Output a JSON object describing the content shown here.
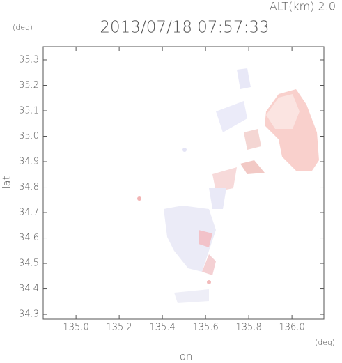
{
  "chart_data": {
    "type": "map",
    "title": "2013/07/18 07:57:33",
    "altitude_label": "ALT(km)  2.0",
    "y_unit": "(deg)",
    "x_unit": "(deg)",
    "xlabel": "lon",
    "ylabel": "lat",
    "xlim": [
      134.848,
      136.148
    ],
    "ylim": [
      34.281,
      35.352
    ],
    "xticks": [
      {
        "value": 135,
        "label": "135.0"
      },
      135.2,
      135.4,
      135.6,
      135.8,
      {
        "value": 136,
        "label": "136.0"
      }
    ],
    "yticks": [
      34.3,
      34.4,
      34.5,
      34.6,
      34.7,
      34.8,
      34.9,
      {
        "value": 35,
        "label": "35.0"
      },
      35.1,
      35.2,
      35.3
    ]
  }
}
